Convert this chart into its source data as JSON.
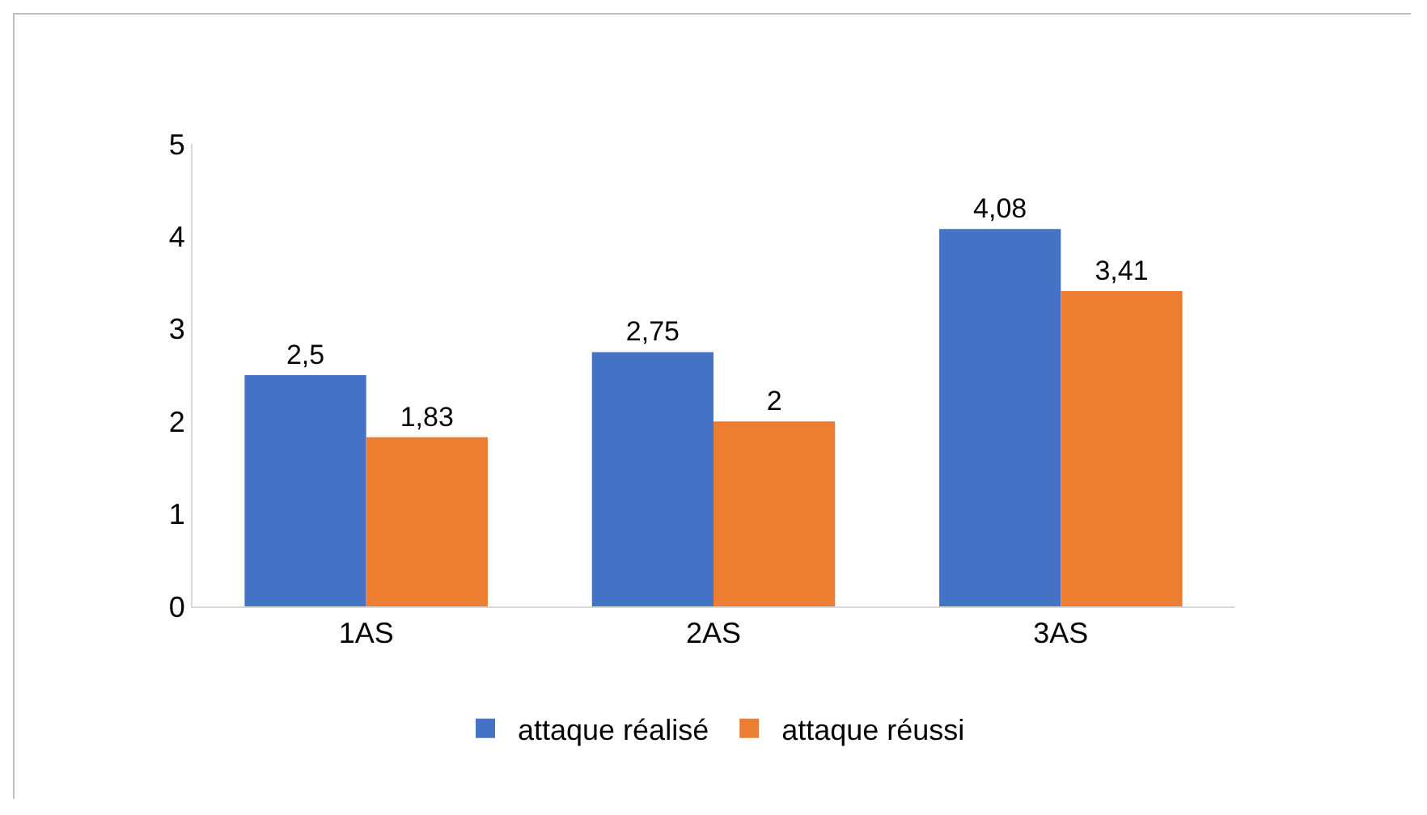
{
  "chart_data": {
    "type": "bar",
    "categories": [
      "1AS",
      "2AS",
      "3AS"
    ],
    "series": [
      {
        "name": "attaque réalisé",
        "color": "#4472c4",
        "values": [
          2.5,
          2.75,
          4.08
        ],
        "value_labels": [
          "2,5",
          "2,75",
          "4,08"
        ]
      },
      {
        "name": "attaque réussi",
        "color": "#ed7d31",
        "values": [
          1.83,
          2,
          3.41
        ],
        "value_labels": [
          "1,83",
          "2",
          "3,41"
        ]
      }
    ],
    "ylim": [
      0,
      5
    ],
    "yticks": [
      0,
      1,
      2,
      3,
      4,
      5
    ],
    "grid": false,
    "legend": "bottom"
  }
}
